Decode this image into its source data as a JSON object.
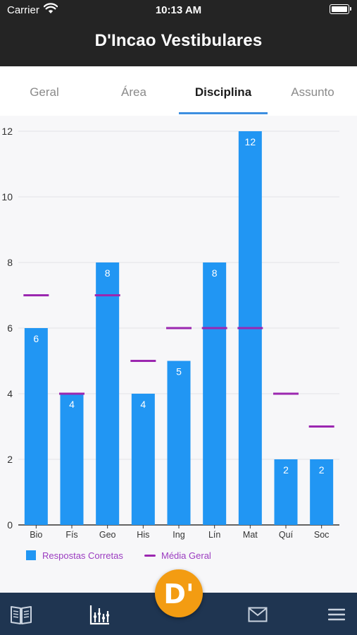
{
  "status_bar": {
    "carrier": "Carrier",
    "time": "10:13 AM"
  },
  "app_title": "D'Incao Vestibulares",
  "tabs": [
    {
      "label": "Geral",
      "active": false
    },
    {
      "label": "Área",
      "active": false
    },
    {
      "label": "Disciplina",
      "active": true
    },
    {
      "label": "Assunto",
      "active": false
    }
  ],
  "chart_data": {
    "type": "bar",
    "categories": [
      "Bio",
      "Fís",
      "Geo",
      "His",
      "Ing",
      "Lín",
      "Mat",
      "Quí",
      "Soc"
    ],
    "series": [
      {
        "name": "Respostas Corretas",
        "values": [
          6,
          4,
          8,
          4,
          5,
          8,
          12,
          2,
          2
        ],
        "color": "#2196f3"
      },
      {
        "name": "Média Geral",
        "values": [
          7,
          4,
          7,
          5,
          6,
          6,
          6,
          4,
          3
        ],
        "color": "#9b27b0"
      }
    ],
    "yticks": [
      "0",
      "2",
      "4",
      "6",
      "8",
      "10",
      "12"
    ],
    "ylim": [
      0,
      12
    ],
    "grid": true,
    "legend": "bottom-left"
  },
  "fab_label": "D'",
  "icons": {
    "nav_book": "book-icon",
    "nav_chart": "chart-icon",
    "nav_mail": "mail-icon",
    "nav_menu": "menu-icon"
  }
}
